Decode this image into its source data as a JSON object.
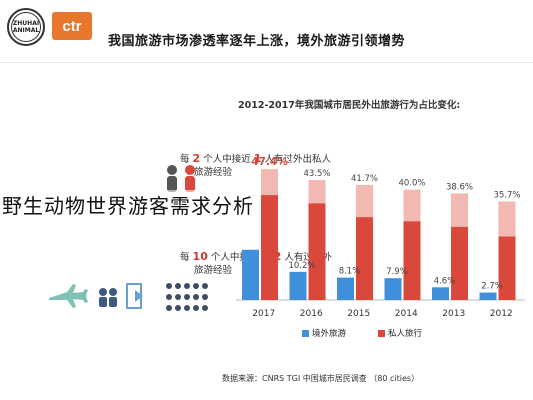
{
  "header": {
    "logo_text": "ZHUHAI ANIMAL",
    "brand_logo": "ctr",
    "title": "我国旅游市场渗透率逐年上涨，境外旅游引领增势"
  },
  "stats": [
    {
      "prefix": "每",
      "num": "2",
      "mid": "个人中接近",
      "num2": "1",
      "suffix": "人有过外出私人",
      "line2": "旅游经验"
    },
    {
      "prefix": "每",
      "num": "10",
      "mid": "个人中接近",
      "num2": "1-2",
      "suffix": "人有过境外",
      "line2": "旅游经验"
    }
  ],
  "chart_data": {
    "type": "bar",
    "title": "2012-2017年我国城市居民外出旅游行为占比变化:",
    "categories": [
      "2017",
      "2016",
      "2015",
      "2014",
      "2013",
      "2012"
    ],
    "series": [
      {
        "name": "境外旅游",
        "color": "#3f8fdc",
        "values": [
          18.2,
          10.2,
          8.1,
          7.9,
          4.6,
          2.7
        ],
        "labels": [
          "",
          "10.2%",
          "8.1%",
          "7.9%",
          "4.6%",
          "2.7%"
        ]
      },
      {
        "name": "私人旅行",
        "color": "#d9483a",
        "light_color": "#f2b8b2",
        "values": [
          47.4,
          43.5,
          41.7,
          40.0,
          38.6,
          35.7
        ],
        "dark_values": [
          38.0,
          35.0,
          30.0,
          28.5,
          26.5,
          23.0
        ],
        "labels": [
          "47.4%",
          "43.5%",
          "41.7%",
          "40.0%",
          "38.6%",
          "35.7%"
        ]
      }
    ],
    "ylim": [
      0,
      50
    ],
    "grid": false,
    "legend": "bottom"
  },
  "source": "数据来源：CNRS TGI 中国城市居民调查 （80 cities）",
  "watermark": "野生动物世界游客需求分析"
}
